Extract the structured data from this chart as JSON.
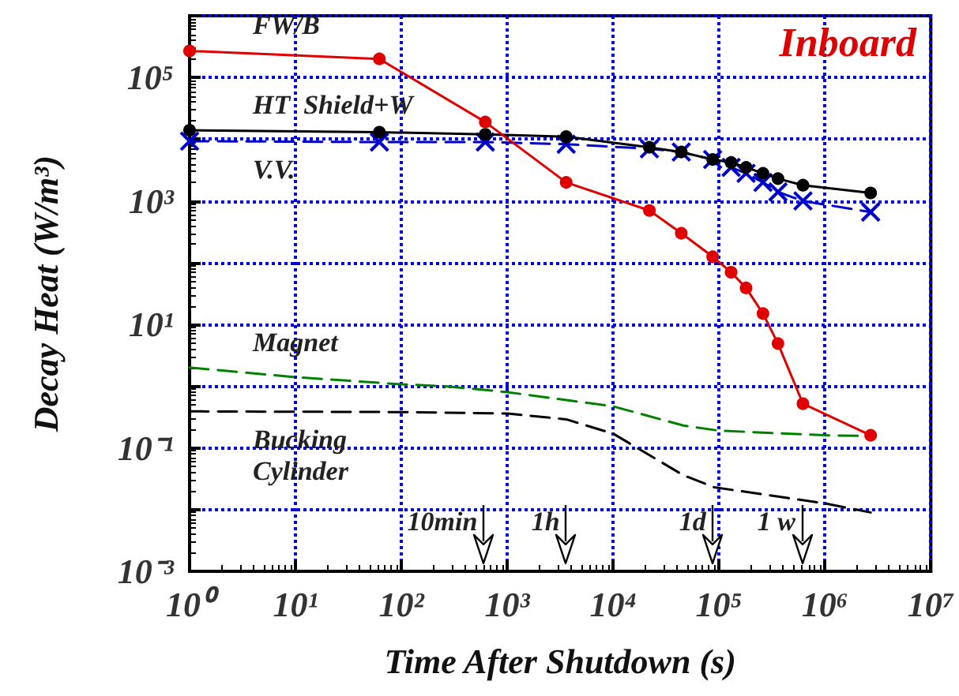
{
  "chart_data": {
    "type": "line",
    "title": "Inboard",
    "xlabel": "Time After Shutdown (s)",
    "ylabel": "Decay Heat (W/m³)",
    "log": "xy",
    "grid": true,
    "legend": false,
    "xlim": [
      1,
      10000000
    ],
    "ylim": [
      0.001,
      1000000
    ],
    "xticks": [
      {
        "value": 1,
        "label": "10⁰"
      },
      {
        "value": 10,
        "label": "10¹"
      },
      {
        "value": 100,
        "label": "10²"
      },
      {
        "value": 1000,
        "label": "10³"
      },
      {
        "value": 10000,
        "label": "10⁴"
      },
      {
        "value": 100000,
        "label": "10⁵"
      },
      {
        "value": 1000000,
        "label": "10⁶"
      },
      {
        "value": 10000000,
        "label": "10⁷"
      }
    ],
    "yticks": [
      {
        "value": 0.001,
        "label": "10⁻³"
      },
      {
        "value": 0.01,
        "label": null
      },
      {
        "value": 0.1,
        "label": "10⁻¹"
      },
      {
        "value": 1,
        "label": null
      },
      {
        "value": 10,
        "label": "10¹"
      },
      {
        "value": 100,
        "label": null
      },
      {
        "value": 1000,
        "label": "10³"
      },
      {
        "value": 10000,
        "label": null
      },
      {
        "value": 100000,
        "label": "10⁵"
      },
      {
        "value": 1000000,
        "label": null
      }
    ],
    "series": [
      {
        "name": "FW/B",
        "color": "#e00000",
        "marker": "circle",
        "line_style": "solid",
        "x": [
          1,
          62,
          620,
          3600,
          22000,
          44000,
          87000,
          130000,
          180000,
          260000,
          360000,
          620000,
          2700000
        ],
        "values": [
          270000,
          200000,
          19000,
          2000,
          700,
          300,
          125,
          70,
          39,
          15,
          4.9,
          0.52,
          0.16
        ]
      },
      {
        "name": "HT  Shield+W",
        "color": "#000000",
        "marker": "circle",
        "line_style": "solid",
        "x": [
          1,
          62,
          620,
          3600,
          22000,
          44000,
          87000,
          130000,
          180000,
          260000,
          360000,
          620000,
          2700000
        ],
        "values": [
          14000,
          13000,
          12000,
          11000,
          7400,
          6200,
          4700,
          4200,
          3500,
          2800,
          2300,
          1800,
          1350
        ]
      },
      {
        "name": "V.V.",
        "color": "#0000cc",
        "marker": "cross",
        "line_style": "dashed",
        "x": [
          1,
          62,
          620,
          3600,
          22000,
          44000,
          87000,
          130000,
          180000,
          260000,
          360000,
          620000,
          2700000
        ],
        "values": [
          9300,
          9000,
          9000,
          8300,
          7000,
          6200,
          4700,
          3500,
          2800,
          2000,
          1400,
          1000,
          660
        ]
      },
      {
        "name": "Magnet",
        "color": "#008000",
        "marker": "none",
        "line_style": "dashed",
        "x": [
          1,
          10,
          100,
          250,
          1000,
          10000,
          46000,
          100000,
          1000000,
          2700000
        ],
        "values": [
          2.0,
          1.4,
          1.07,
          1.0,
          0.8,
          0.47,
          0.23,
          0.19,
          0.16,
          0.155
        ]
      },
      {
        "name": "Bucking Cylinder",
        "color": "#000000",
        "marker": "none",
        "line_style": "dashed",
        "x": [
          1,
          100,
          1000,
          3600,
          10000,
          46000,
          90000,
          1000000,
          2700000
        ],
        "values": [
          0.39,
          0.38,
          0.36,
          0.29,
          0.17,
          0.036,
          0.023,
          0.0126,
          0.009
        ]
      }
    ],
    "ref_lines": [
      {
        "axis": "x",
        "value": 600,
        "label": "10min",
        "color": "#000000"
      },
      {
        "axis": "x",
        "value": 3600,
        "label": "1h",
        "color": "#000000"
      },
      {
        "axis": "x",
        "value": 86400,
        "label": "1d",
        "color": "#000000"
      },
      {
        "axis": "x",
        "value": 604800,
        "label": "1 w",
        "color": "#000000"
      }
    ]
  }
}
